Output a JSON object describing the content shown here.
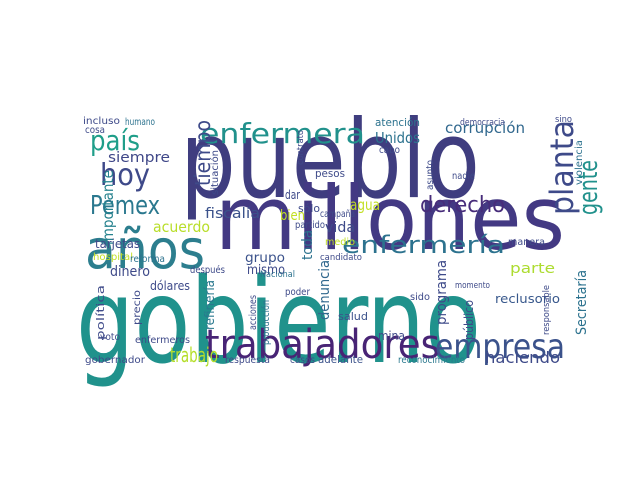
{
  "chart_data": {
    "type": "wordcloud",
    "words": [
      {
        "text": "gobierno",
        "color": "#20928c"
      },
      {
        "text": "pueblo",
        "color": "#3f3d7f"
      },
      {
        "text": "millones",
        "color": "#433983"
      },
      {
        "text": "años",
        "color": "#2c7e8e"
      },
      {
        "text": "trabajadores",
        "color": "#482475"
      },
      {
        "text": "empresa",
        "color": "#3b528b"
      },
      {
        "text": "enfermera",
        "color": "#21918c"
      },
      {
        "text": "enfermería",
        "color": "#2c728e"
      },
      {
        "text": "hoy",
        "color": "#3e4989"
      },
      {
        "text": "país",
        "color": "#1f9e89"
      },
      {
        "text": "Pemex",
        "color": "#2a788e"
      },
      {
        "text": "planta",
        "color": "#3e4a89"
      },
      {
        "text": "gente",
        "color": "#21918c"
      },
      {
        "text": "derecho",
        "color": "#472c7a"
      },
      {
        "text": "tiempo",
        "color": "#3e4a89"
      },
      {
        "text": "siempre",
        "color": "#3f4788"
      },
      {
        "text": "trabajo",
        "color": "#b5de2b"
      },
      {
        "text": "haciendo",
        "color": "#3e4a89"
      },
      {
        "text": "acuerdo",
        "color": "#b8de29"
      },
      {
        "text": "fiscalía",
        "color": "#3b528b"
      },
      {
        "text": "corrupción",
        "color": "#31688e"
      },
      {
        "text": "Unidos",
        "color": "#2c728e"
      },
      {
        "text": "Secretaría",
        "color": "#2c728e"
      },
      {
        "text": "reclusorio",
        "color": "#38588c"
      },
      {
        "text": "programa",
        "color": "#3e4a89"
      },
      {
        "text": "importante",
        "color": "#26828e"
      },
      {
        "text": "política",
        "color": "#3e4a89"
      },
      {
        "text": "dinero",
        "color": "#3e4a89"
      },
      {
        "text": "mismo",
        "color": "#3e4a89"
      },
      {
        "text": "grupo",
        "color": "#3b528b"
      },
      {
        "text": "refinería",
        "color": "#2a788e"
      },
      {
        "text": "denuncia",
        "color": "#31688e"
      },
      {
        "text": "toda",
        "color": "#2c728e"
      },
      {
        "text": "agua",
        "color": "#c2df23"
      },
      {
        "text": "vida",
        "color": "#3e4a89"
      },
      {
        "text": "bien",
        "color": "#c2df23"
      },
      {
        "text": "parte",
        "color": "#addc30"
      },
      {
        "text": "público",
        "color": "#3e4a89"
      },
      {
        "text": "salud",
        "color": "#3b528b"
      },
      {
        "text": "voto",
        "color": "#3e4a89"
      },
      {
        "text": "gobernador",
        "color": "#3e4a89"
      },
      {
        "text": "reconocimiento",
        "color": "#2a788e"
      },
      {
        "text": "adelante",
        "color": "#3b528b"
      },
      {
        "text": "respuesta",
        "color": "#3e4a89"
      },
      {
        "text": "casos",
        "color": "#3e4a89"
      },
      {
        "text": "enfermeros",
        "color": "#3e4a89"
      },
      {
        "text": "Nacional",
        "color": "#2c728e"
      },
      {
        "text": "dólares",
        "color": "#3e4a89"
      },
      {
        "text": "después",
        "color": "#3e4a89"
      },
      {
        "text": "tarjetas",
        "color": "#3e4a89"
      },
      {
        "text": "poder",
        "color": "#3e4a89"
      },
      {
        "text": "campaña",
        "color": "#3e4a89"
      },
      {
        "text": "partido",
        "color": "#3e4a89"
      },
      {
        "text": "medio",
        "color": "#c2df23"
      },
      {
        "text": "candidato",
        "color": "#3e4a89"
      },
      {
        "text": "mina",
        "color": "#3e4a89"
      },
      {
        "text": "sido",
        "color": "#3e4a89"
      },
      {
        "text": "atención",
        "color": "#2c728e"
      },
      {
        "text": "democracia",
        "color": "#3e4a89"
      },
      {
        "text": "incluso",
        "color": "#3e4a89"
      },
      {
        "text": "cosa",
        "color": "#3e4a89"
      },
      {
        "text": "humano",
        "color": "#2c728e"
      },
      {
        "text": "dar",
        "color": "#3e4a89"
      },
      {
        "text": "sólo",
        "color": "#3e4a89"
      },
      {
        "text": "pesos",
        "color": "#3e4a89"
      },
      {
        "text": "cabo",
        "color": "#3e4a89"
      },
      {
        "text": "nadie",
        "color": "#3e4a89"
      },
      {
        "text": "violencia",
        "color": "#2c728e"
      },
      {
        "text": "situación",
        "color": "#3e4a89"
      },
      {
        "text": "precio",
        "color": "#3e4a89"
      },
      {
        "text": "manera",
        "color": "#3e4a89"
      },
      {
        "text": "momento",
        "color": "#3e4a89"
      },
      {
        "text": "responsable",
        "color": "#3e4a89"
      },
      {
        "text": "contrato",
        "color": "#3e4a89"
      },
      {
        "text": "acciones",
        "color": "#3e4a89"
      },
      {
        "text": "producción",
        "color": "#2c728e"
      },
      {
        "text": "asunto",
        "color": "#3e4a89"
      },
      {
        "text": "hospital",
        "color": "#c2df23"
      },
      {
        "text": "reforma",
        "color": "#2c728e"
      },
      {
        "text": "sino",
        "color": "#3e4a89"
      }
    ]
  }
}
